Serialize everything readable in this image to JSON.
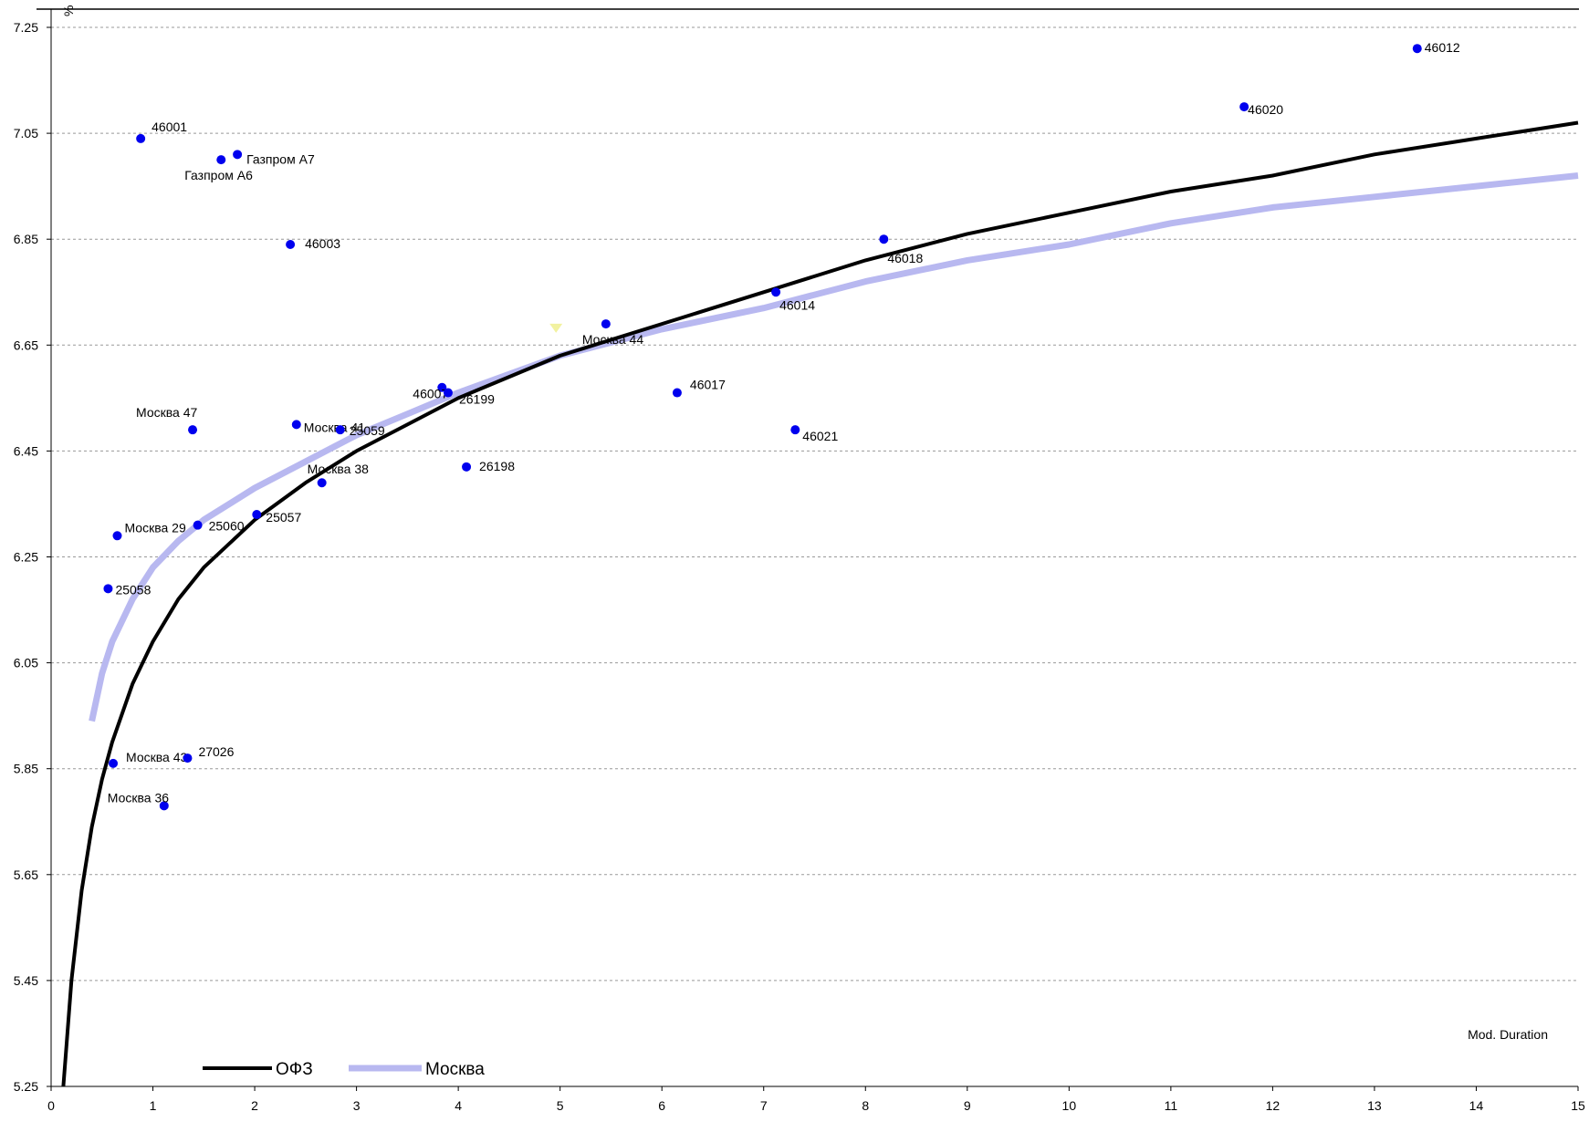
{
  "chart_data": {
    "type": "scatter",
    "title": "",
    "xlabel": "Mod. Duration",
    "ylabel": "%",
    "xlim": [
      0,
      15
    ],
    "ylim": [
      5.25,
      7.25
    ],
    "x_ticks": [
      "0",
      "1",
      "2",
      "3",
      "4",
      "5",
      "6",
      "7",
      "8",
      "9",
      "10",
      "11",
      "12",
      "13",
      "14",
      "15"
    ],
    "y_ticks": [
      "5.25",
      "5.45",
      "5.65",
      "5.85",
      "6.05",
      "6.25",
      "6.45",
      "6.65",
      "6.85",
      "7.05",
      "7.25"
    ],
    "grid": "horizontal-dashed",
    "legend_position": "bottom-left",
    "colors": {
      "points": "#0000ee",
      "ofz_curve": "#000000",
      "moscow_curve": "#b8b8f0",
      "special_marker": "#f2f2a0"
    },
    "series": [
      {
        "name": "ОФЗ",
        "type": "curve",
        "points": [
          {
            "x": 0.12,
            "y": 5.25
          },
          {
            "x": 0.2,
            "y": 5.45
          },
          {
            "x": 0.3,
            "y": 5.62
          },
          {
            "x": 0.4,
            "y": 5.74
          },
          {
            "x": 0.5,
            "y": 5.83
          },
          {
            "x": 0.6,
            "y": 5.9
          },
          {
            "x": 0.8,
            "y": 6.01
          },
          {
            "x": 1.0,
            "y": 6.09
          },
          {
            "x": 1.25,
            "y": 6.17
          },
          {
            "x": 1.5,
            "y": 6.23
          },
          {
            "x": 2.0,
            "y": 6.32
          },
          {
            "x": 2.5,
            "y": 6.39
          },
          {
            "x": 3.0,
            "y": 6.45
          },
          {
            "x": 3.5,
            "y": 6.5
          },
          {
            "x": 4.0,
            "y": 6.55
          },
          {
            "x": 5.0,
            "y": 6.63
          },
          {
            "x": 6.0,
            "y": 6.69
          },
          {
            "x": 7.0,
            "y": 6.75
          },
          {
            "x": 8.0,
            "y": 6.81
          },
          {
            "x": 9.0,
            "y": 6.86
          },
          {
            "x": 10.0,
            "y": 6.9
          },
          {
            "x": 11.0,
            "y": 6.94
          },
          {
            "x": 12.0,
            "y": 6.97
          },
          {
            "x": 13.0,
            "y": 7.01
          },
          {
            "x": 14.0,
            "y": 7.04
          },
          {
            "x": 15.0,
            "y": 7.07
          }
        ]
      },
      {
        "name": "Москва",
        "type": "curve",
        "points": [
          {
            "x": 0.4,
            "y": 5.94
          },
          {
            "x": 0.5,
            "y": 6.03
          },
          {
            "x": 0.6,
            "y": 6.09
          },
          {
            "x": 0.8,
            "y": 6.17
          },
          {
            "x": 1.0,
            "y": 6.23
          },
          {
            "x": 1.25,
            "y": 6.28
          },
          {
            "x": 1.5,
            "y": 6.32
          },
          {
            "x": 2.0,
            "y": 6.38
          },
          {
            "x": 2.5,
            "y": 6.43
          },
          {
            "x": 3.0,
            "y": 6.48
          },
          {
            "x": 3.5,
            "y": 6.52
          },
          {
            "x": 4.0,
            "y": 6.56
          },
          {
            "x": 5.0,
            "y": 6.63
          },
          {
            "x": 6.0,
            "y": 6.68
          },
          {
            "x": 7.0,
            "y": 6.72
          },
          {
            "x": 8.0,
            "y": 6.77
          },
          {
            "x": 9.0,
            "y": 6.81
          },
          {
            "x": 10.0,
            "y": 6.84
          },
          {
            "x": 11.0,
            "y": 6.88
          },
          {
            "x": 12.0,
            "y": 6.91
          },
          {
            "x": 13.0,
            "y": 6.93
          },
          {
            "x": 14.0,
            "y": 6.95
          },
          {
            "x": 15.0,
            "y": 6.97
          }
        ]
      }
    ],
    "points": [
      {
        "label": "46012",
        "x": 13.42,
        "y": 7.21,
        "lx": 8,
        "ly": 4
      },
      {
        "label": "46020",
        "x": 11.72,
        "y": 7.1,
        "lx": 4,
        "ly": 8
      },
      {
        "label": "46001",
        "x": 0.88,
        "y": 7.04,
        "lx": 12,
        "ly": -8
      },
      {
        "label": "Газпром А7",
        "x": 1.83,
        "y": 7.01,
        "lx": 10,
        "ly": 10
      },
      {
        "label": "Газпром А6",
        "x": 1.67,
        "y": 7.0,
        "lx": -40,
        "ly": 22
      },
      {
        "label": "46003",
        "x": 2.35,
        "y": 6.84,
        "lx": 16,
        "ly": 4
      },
      {
        "label": "46018",
        "x": 8.18,
        "y": 6.85,
        "lx": 4,
        "ly": 26
      },
      {
        "label": "46014",
        "x": 7.12,
        "y": 6.75,
        "lx": 4,
        "ly": 19
      },
      {
        "label": "Москва 44",
        "x": 5.45,
        "y": 6.69,
        "lx": -26,
        "ly": 22
      },
      {
        "label": "46017",
        "x": 6.15,
        "y": 6.56,
        "lx": 14,
        "ly": -4
      },
      {
        "label": "46021",
        "x": 7.31,
        "y": 6.49,
        "lx": 8,
        "ly": 12
      },
      {
        "label": "46007",
        "x": 3.84,
        "y": 6.57,
        "lx": -32,
        "ly": 12
      },
      {
        "label": "26199",
        "x": 3.9,
        "y": 6.56,
        "lx": 12,
        "ly": 12
      },
      {
        "label": "Москва 47",
        "x": 1.39,
        "y": 6.49,
        "lx": -62,
        "ly": -14
      },
      {
        "label": "Москва 41",
        "x": 2.41,
        "y": 6.5,
        "lx": 8,
        "ly": 8
      },
      {
        "label": "25059",
        "x": 2.84,
        "y": 6.49,
        "lx": 10,
        "ly": 6
      },
      {
        "label": "26198",
        "x": 4.08,
        "y": 6.42,
        "lx": 14,
        "ly": 4
      },
      {
        "label": "Москва 38",
        "x": 2.66,
        "y": 6.39,
        "lx": -16,
        "ly": -10
      },
      {
        "label": "25057",
        "x": 2.02,
        "y": 6.33,
        "lx": 10,
        "ly": 8
      },
      {
        "label": "25060",
        "x": 1.44,
        "y": 6.31,
        "lx": 12,
        "ly": 6
      },
      {
        "label": "Москва 29",
        "x": 0.65,
        "y": 6.29,
        "lx": 8,
        "ly": -4
      },
      {
        "label": "25058",
        "x": 0.56,
        "y": 6.19,
        "lx": 8,
        "ly": 6
      },
      {
        "label": "Москва 43",
        "x": 0.61,
        "y": 5.86,
        "lx": 14,
        "ly": -2
      },
      {
        "label": "27026",
        "x": 1.34,
        "y": 5.87,
        "lx": 12,
        "ly": -2
      },
      {
        "label": "Москва 36",
        "x": 1.11,
        "y": 5.78,
        "lx": -62,
        "ly": -4
      }
    ],
    "special_marker": {
      "x": 4.96,
      "y": 6.68
    }
  }
}
